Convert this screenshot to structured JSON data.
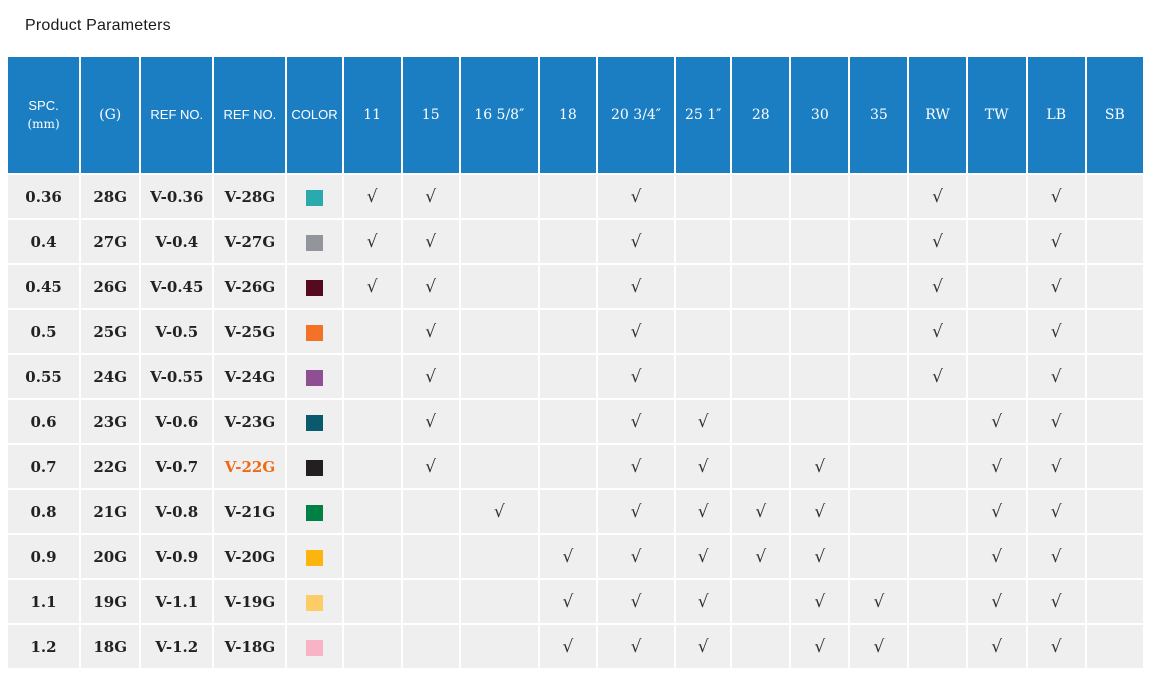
{
  "title": "Product Parameters",
  "colors": {
    "header_bg": "#1b7ec3",
    "cell_bg": "#efefef",
    "check_color": "#333333",
    "highlight_text": "#f06a14"
  },
  "table": {
    "check_glyph": "√",
    "headers": [
      {
        "lines": [
          "SPC.",
          "(mm)"
        ]
      },
      {
        "lines": [
          "(G)"
        ]
      },
      {
        "lines": [
          "REF NO."
        ]
      },
      {
        "lines": [
          "REF NO."
        ]
      },
      {
        "lines": [
          "COLOR"
        ]
      },
      {
        "lines": [
          "11"
        ]
      },
      {
        "lines": [
          "15"
        ]
      },
      {
        "lines": [
          "16 5/8″"
        ]
      },
      {
        "lines": [
          "18"
        ]
      },
      {
        "lines": [
          "20 3/4″"
        ]
      },
      {
        "lines": [
          "25 1″"
        ]
      },
      {
        "lines": [
          "28"
        ]
      },
      {
        "lines": [
          "30"
        ]
      },
      {
        "lines": [
          "35"
        ]
      },
      {
        "lines": [
          "RW"
        ]
      },
      {
        "lines": [
          "TW"
        ]
      },
      {
        "lines": [
          "LB"
        ]
      },
      {
        "lines": [
          "SB"
        ]
      }
    ],
    "mark_columns": [
      "11",
      "15",
      "16 5/8″",
      "18",
      "20 3/4″",
      "25 1″",
      "28",
      "30",
      "35",
      "RW",
      "TW",
      "LB",
      "SB"
    ],
    "rows": [
      {
        "spc": "0.36",
        "g": "28G",
        "ref1": "V-0.36",
        "ref2": "V-28G",
        "ref2_highlight": false,
        "swatch": "#2aa9ae",
        "checks": [
          1,
          1,
          0,
          0,
          1,
          0,
          0,
          0,
          0,
          1,
          0,
          1,
          0
        ]
      },
      {
        "spc": "0.4",
        "g": "27G",
        "ref1": "V-0.4",
        "ref2": "V-27G",
        "ref2_highlight": false,
        "swatch": "#92959b",
        "checks": [
          1,
          1,
          0,
          0,
          1,
          0,
          0,
          0,
          0,
          1,
          0,
          1,
          0
        ]
      },
      {
        "spc": "0.45",
        "g": "26G",
        "ref1": "V-0.45",
        "ref2": "V-26G",
        "ref2_highlight": false,
        "swatch": "#560a1e",
        "checks": [
          1,
          1,
          0,
          0,
          1,
          0,
          0,
          0,
          0,
          1,
          0,
          1,
          0
        ]
      },
      {
        "spc": "0.5",
        "g": "25G",
        "ref1": "V-0.5",
        "ref2": "V-25G",
        "ref2_highlight": false,
        "swatch": "#f37226",
        "checks": [
          0,
          1,
          0,
          0,
          1,
          0,
          0,
          0,
          0,
          1,
          0,
          1,
          0
        ]
      },
      {
        "spc": "0.55",
        "g": "24G",
        "ref1": "V-0.55",
        "ref2": "V-24G",
        "ref2_highlight": false,
        "swatch": "#8f4f93",
        "checks": [
          0,
          1,
          0,
          0,
          1,
          0,
          0,
          0,
          0,
          1,
          0,
          1,
          0
        ]
      },
      {
        "spc": "0.6",
        "g": "23G",
        "ref1": "V-0.6",
        "ref2": "V-23G",
        "ref2_highlight": false,
        "swatch": "#0a5a6e",
        "checks": [
          0,
          1,
          0,
          0,
          1,
          1,
          0,
          0,
          0,
          0,
          1,
          1,
          0
        ]
      },
      {
        "spc": "0.7",
        "g": "22G",
        "ref1": "V-0.7",
        "ref2": "V-22G",
        "ref2_highlight": true,
        "swatch": "#231e20",
        "checks": [
          0,
          1,
          0,
          0,
          1,
          1,
          0,
          1,
          0,
          0,
          1,
          1,
          0
        ]
      },
      {
        "spc": "0.8",
        "g": "21G",
        "ref1": "V-0.8",
        "ref2": "V-21G",
        "ref2_highlight": false,
        "swatch": "#008042",
        "checks": [
          0,
          0,
          1,
          0,
          1,
          1,
          1,
          1,
          0,
          0,
          1,
          1,
          0
        ]
      },
      {
        "spc": "0.9",
        "g": "20G",
        "ref1": "V-0.9",
        "ref2": "V-20G",
        "ref2_highlight": false,
        "swatch": "#fcb50e",
        "checks": [
          0,
          0,
          0,
          1,
          1,
          1,
          1,
          1,
          0,
          0,
          1,
          1,
          0
        ]
      },
      {
        "spc": "1.1",
        "g": "19G",
        "ref1": "V-1.1",
        "ref2": "V-19G",
        "ref2_highlight": false,
        "swatch": "#fccc67",
        "checks": [
          0,
          0,
          0,
          1,
          1,
          1,
          0,
          1,
          1,
          0,
          1,
          1,
          0
        ]
      },
      {
        "spc": "1.2",
        "g": "18G",
        "ref1": "V-1.2",
        "ref2": "V-18G",
        "ref2_highlight": false,
        "swatch": "#f8b3c6",
        "checks": [
          0,
          0,
          0,
          1,
          1,
          1,
          0,
          1,
          1,
          0,
          1,
          1,
          0
        ]
      }
    ]
  }
}
